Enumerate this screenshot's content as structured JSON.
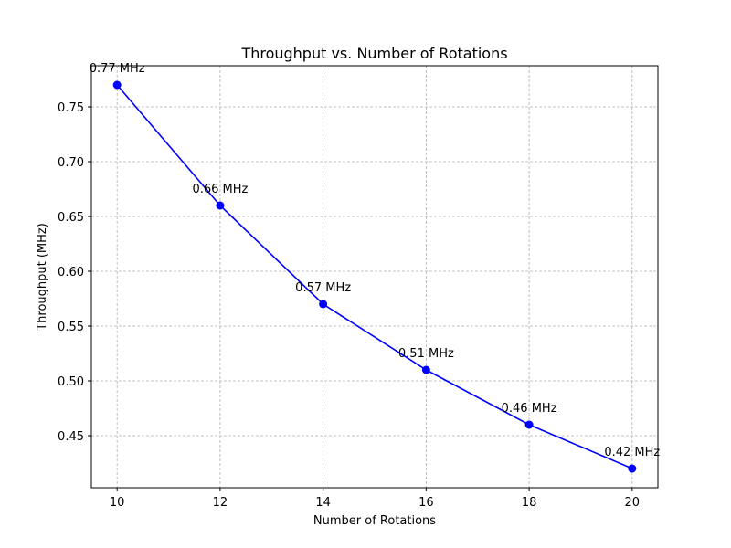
{
  "chart_data": {
    "type": "line",
    "title": "Throughput vs. Number of Rotations",
    "xlabel": "Number of Rotations",
    "ylabel": "Throughput (MHz)",
    "x": [
      10,
      12,
      14,
      16,
      18,
      20
    ],
    "series": [
      {
        "values": [
          0.77,
          0.66,
          0.57,
          0.51,
          0.46,
          0.42
        ],
        "color": "#0000ff",
        "marker": "circle"
      }
    ],
    "data_labels": [
      "0.77 MHz",
      "0.66 MHz",
      "0.57 MHz",
      "0.51 MHz",
      "0.46 MHz",
      "0.42 MHz"
    ],
    "xlim": [
      9.5,
      20.5
    ],
    "ylim": [
      0.4025,
      0.7875
    ],
    "xticks": [
      10,
      12,
      14,
      16,
      18,
      20
    ],
    "xtick_labels": [
      "10",
      "12",
      "14",
      "16",
      "18",
      "20"
    ],
    "yticks": [
      0.45,
      0.5,
      0.55,
      0.6,
      0.65,
      0.7,
      0.75
    ],
    "ytick_labels": [
      "0.45",
      "0.50",
      "0.55",
      "0.60",
      "0.65",
      "0.70",
      "0.75"
    ],
    "grid": true
  }
}
